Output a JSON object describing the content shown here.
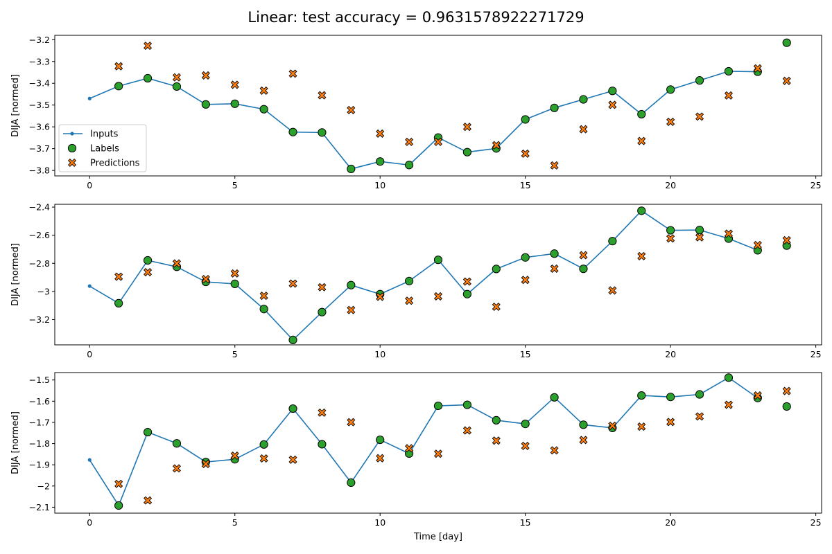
{
  "figure_title": "Linear: test accuracy = 0.9631578922271729",
  "colors": {
    "inputs": "#1f77b4",
    "labels": "#2ca02c",
    "predictions": "#ff7f0e",
    "edge": "#000000"
  },
  "legend": {
    "placement": "lower-left of first panel",
    "items": [
      {
        "key": "inputs",
        "label": "Inputs"
      },
      {
        "key": "labels",
        "label": "Labels"
      },
      {
        "key": "predictions",
        "label": "Predictions"
      }
    ]
  },
  "chart_data": [
    {
      "type": "line",
      "ylabel": "DIJA [normed]",
      "xlabel": "",
      "xlim": [
        -1.2,
        25.2
      ],
      "ylim": [
        -3.825,
        -3.18
      ],
      "xticks": [
        0,
        5,
        10,
        15,
        20,
        25
      ],
      "yticks": [
        -3.8,
        -3.7,
        -3.6,
        -3.5,
        -3.4,
        -3.3,
        -3.2
      ],
      "inputs": {
        "x": [
          0,
          1,
          2,
          3,
          4,
          5,
          6,
          7,
          8,
          9,
          10,
          11,
          12,
          13,
          14,
          15,
          16,
          17,
          18,
          19,
          20,
          21,
          22,
          23
        ],
        "y": [
          -3.47,
          -3.413,
          -3.377,
          -3.415,
          -3.497,
          -3.494,
          -3.519,
          -3.624,
          -3.626,
          -3.793,
          -3.759,
          -3.775,
          -3.649,
          -3.716,
          -3.699,
          -3.566,
          -3.513,
          -3.474,
          -3.435,
          -3.542,
          -3.429,
          -3.387,
          -3.345,
          -3.347
        ]
      },
      "labels": {
        "x": [
          1,
          2,
          3,
          4,
          5,
          6,
          7,
          8,
          9,
          10,
          11,
          12,
          13,
          14,
          15,
          16,
          17,
          18,
          19,
          20,
          21,
          22,
          23,
          24
        ],
        "y": [
          -3.413,
          -3.377,
          -3.415,
          -3.497,
          -3.494,
          -3.519,
          -3.624,
          -3.626,
          -3.793,
          -3.759,
          -3.775,
          -3.649,
          -3.716,
          -3.699,
          -3.566,
          -3.513,
          -3.474,
          -3.435,
          -3.542,
          -3.429,
          -3.387,
          -3.345,
          -3.347,
          -3.214
        ]
      },
      "predictions": {
        "x": [
          1,
          2,
          3,
          4,
          5,
          6,
          7,
          8,
          9,
          10,
          11,
          12,
          13,
          14,
          15,
          16,
          17,
          18,
          19,
          20,
          21,
          22,
          23,
          24
        ],
        "y": [
          -3.322,
          -3.228,
          -3.373,
          -3.364,
          -3.407,
          -3.434,
          -3.356,
          -3.455,
          -3.523,
          -3.631,
          -3.669,
          -3.669,
          -3.6,
          -3.684,
          -3.723,
          -3.777,
          -3.611,
          -3.499,
          -3.665,
          -3.577,
          -3.553,
          -3.456,
          -3.332,
          -3.389
        ]
      }
    },
    {
      "type": "line",
      "ylabel": "DIJA [normed]",
      "xlabel": "",
      "xlim": [
        -1.2,
        25.2
      ],
      "ylim": [
        -3.38,
        -2.38
      ],
      "xticks": [
        0,
        5,
        10,
        15,
        20,
        25
      ],
      "yticks": [
        -3.2,
        -3.0,
        -2.8,
        -2.6,
        -2.4
      ],
      "inputs": {
        "x": [
          0,
          1,
          2,
          3,
          4,
          5,
          6,
          7,
          8,
          9,
          10,
          11,
          12,
          13,
          14,
          15,
          16,
          17,
          18,
          19,
          20,
          21,
          22,
          23
        ],
        "y": [
          -2.962,
          -3.084,
          -2.779,
          -2.825,
          -2.932,
          -2.946,
          -3.125,
          -3.345,
          -3.147,
          -2.955,
          -3.019,
          -2.926,
          -2.775,
          -3.019,
          -2.84,
          -2.758,
          -2.731,
          -2.839,
          -2.642,
          -2.426,
          -2.565,
          -2.563,
          -2.624,
          -2.707
        ]
      },
      "labels": {
        "x": [
          1,
          2,
          3,
          4,
          5,
          6,
          7,
          8,
          9,
          10,
          11,
          12,
          13,
          14,
          15,
          16,
          17,
          18,
          19,
          20,
          21,
          22,
          23,
          24
        ],
        "y": [
          -3.084,
          -2.779,
          -2.825,
          -2.932,
          -2.946,
          -3.125,
          -3.345,
          -3.147,
          -2.955,
          -3.019,
          -2.926,
          -2.775,
          -3.019,
          -2.84,
          -2.758,
          -2.731,
          -2.839,
          -2.642,
          -2.426,
          -2.565,
          -2.563,
          -2.624,
          -2.707,
          -2.674
        ]
      },
      "predictions": {
        "x": [
          1,
          2,
          3,
          4,
          5,
          6,
          7,
          8,
          9,
          10,
          11,
          12,
          13,
          14,
          15,
          16,
          17,
          18,
          19,
          20,
          21,
          22,
          23,
          24
        ],
        "y": [
          -2.895,
          -2.863,
          -2.801,
          -2.912,
          -2.872,
          -3.031,
          -2.944,
          -2.97,
          -3.132,
          -3.038,
          -3.066,
          -3.035,
          -2.93,
          -3.109,
          -2.918,
          -2.838,
          -2.742,
          -2.993,
          -2.749,
          -2.623,
          -2.615,
          -2.589,
          -2.67,
          -2.636
        ]
      }
    },
    {
      "type": "line",
      "ylabel": "DIJA [normed]",
      "xlabel": "Time [day]",
      "xlim": [
        -1.2,
        25.2
      ],
      "ylim": [
        -2.128,
        -1.465
      ],
      "xticks": [
        0,
        5,
        10,
        15,
        20,
        25
      ],
      "yticks": [
        -2.1,
        -2.0,
        -1.9,
        -1.8,
        -1.7,
        -1.6,
        -1.5
      ],
      "inputs": {
        "x": [
          0,
          1,
          2,
          3,
          4,
          5,
          6,
          7,
          8,
          9,
          10,
          11,
          12,
          13,
          14,
          15,
          16,
          17,
          18,
          19,
          20,
          21,
          22,
          23
        ],
        "y": [
          -1.877,
          -2.092,
          -1.746,
          -1.799,
          -1.887,
          -1.874,
          -1.804,
          -1.635,
          -1.803,
          -1.984,
          -1.782,
          -1.847,
          -1.622,
          -1.617,
          -1.69,
          -1.707,
          -1.582,
          -1.711,
          -1.726,
          -1.573,
          -1.58,
          -1.568,
          -1.489,
          -1.585
        ]
      },
      "labels": {
        "x": [
          1,
          2,
          3,
          4,
          5,
          6,
          7,
          8,
          9,
          10,
          11,
          12,
          13,
          14,
          15,
          16,
          17,
          18,
          19,
          20,
          21,
          22,
          23,
          24
        ],
        "y": [
          -2.092,
          -1.746,
          -1.799,
          -1.887,
          -1.874,
          -1.804,
          -1.635,
          -1.803,
          -1.984,
          -1.782,
          -1.847,
          -1.622,
          -1.617,
          -1.69,
          -1.707,
          -1.582,
          -1.711,
          -1.726,
          -1.573,
          -1.58,
          -1.568,
          -1.489,
          -1.585,
          -1.625
        ]
      },
      "predictions": {
        "x": [
          1,
          2,
          3,
          4,
          5,
          6,
          7,
          8,
          9,
          10,
          11,
          12,
          13,
          14,
          15,
          16,
          17,
          18,
          19,
          20,
          21,
          22,
          23,
          24
        ],
        "y": [
          -1.99,
          -2.068,
          -1.917,
          -1.896,
          -1.857,
          -1.87,
          -1.876,
          -1.654,
          -1.699,
          -1.869,
          -1.822,
          -1.848,
          -1.738,
          -1.786,
          -1.811,
          -1.832,
          -1.783,
          -1.716,
          -1.72,
          -1.698,
          -1.672,
          -1.617,
          -1.573,
          -1.552
        ]
      }
    }
  ]
}
